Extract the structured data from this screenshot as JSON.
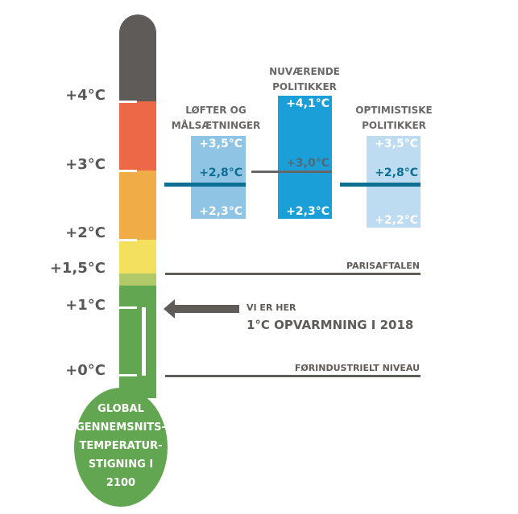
{
  "scale": [
    "+4°C",
    "+3°C",
    "+2°C",
    "+1,5°C",
    "+1°C",
    "+0°C"
  ],
  "bulb_text": [
    "GLOBAL",
    "GENNEMSNITS-",
    "TEMPERATUR-",
    "STIGNING I",
    "2100"
  ],
  "scenarios": [
    {
      "title": [
        "LØFTER OG",
        "MÅLSÆTNINGER"
      ],
      "high": "+3,5°C",
      "mid": "+2,8°C",
      "low": "+2,3°C",
      "color": "#8fc4e4"
    },
    {
      "title": [
        "NUVÆRENDE",
        "POLITIKKER"
      ],
      "high": "+4,1°C",
      "mid": "+3,0°C",
      "low": "+2,3°C",
      "color": "#1a9fd9"
    },
    {
      "title": [
        "OPTIMISTISKE",
        "POLITIKKER"
      ],
      "high": "+3,5°C",
      "mid": "+2,8°C",
      "low": "+2,2°C",
      "color": "#bddbf1"
    }
  ],
  "paris": "PARISAFTALEN",
  "here1": "VI ER HER",
  "here2": "1°C OPVARMNING I 2018",
  "preindustrial": "FØRINDUSTRIELT NIVEAU",
  "colors": {
    "grey": "#5f5b59",
    "red": "#ec6847",
    "orange": "#f0ac46",
    "yellow": "#f2e05e",
    "lightgreen": "#b2c96a",
    "green": "#63a651",
    "teal": "#0d6f93"
  }
}
